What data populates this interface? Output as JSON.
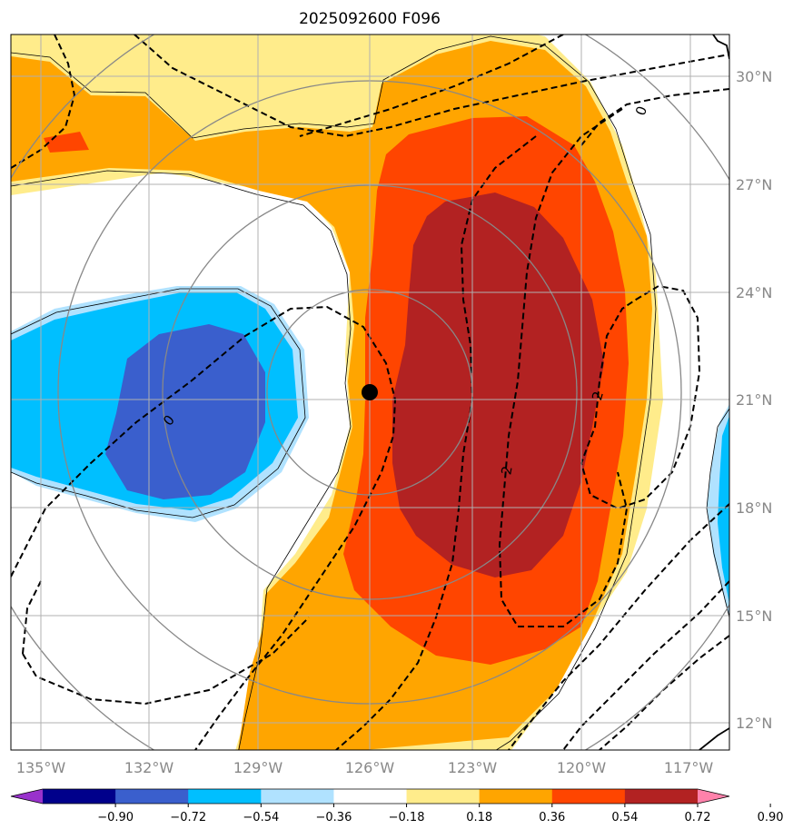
{
  "title": "2025092600 F096",
  "longitude_labels": [
    "135°W",
    "132°W",
    "129°W",
    "126°W",
    "123°W",
    "120°W",
    "117°W"
  ],
  "latitude_labels": [
    "30°N",
    "27°N",
    "24°N",
    "21°N",
    "18°N",
    "15°N",
    "12°N"
  ],
  "colorbar": {
    "ticks": [
      "−0.90",
      "−0.72",
      "−0.54",
      "−0.36",
      "−0.18",
      "0.18",
      "0.36",
      "0.54",
      "0.72",
      "0.90"
    ],
    "colors": [
      "#9932cc",
      "#00008b",
      "#3a5fcd",
      "#00bfff",
      "#b0e2ff",
      "#ffffff",
      "#ffec8b",
      "#ffa500",
      "#ff4500",
      "#b22222",
      "#ff82ab"
    ]
  },
  "contour_labels": [
    "0",
    "0",
    "2",
    "2"
  ],
  "storm_center": {
    "lon": -126.0,
    "lat": 21.2
  },
  "fill_colors": {
    "pos_weak": "#ffec8b",
    "pos_mid": "#ffa500",
    "pos_strong": "#ff4500",
    "pos_max": "#b22222",
    "neg_weak": "#b0e2ff",
    "neg_mid": "#00bfff",
    "neg_strong": "#3a5fcd"
  }
}
